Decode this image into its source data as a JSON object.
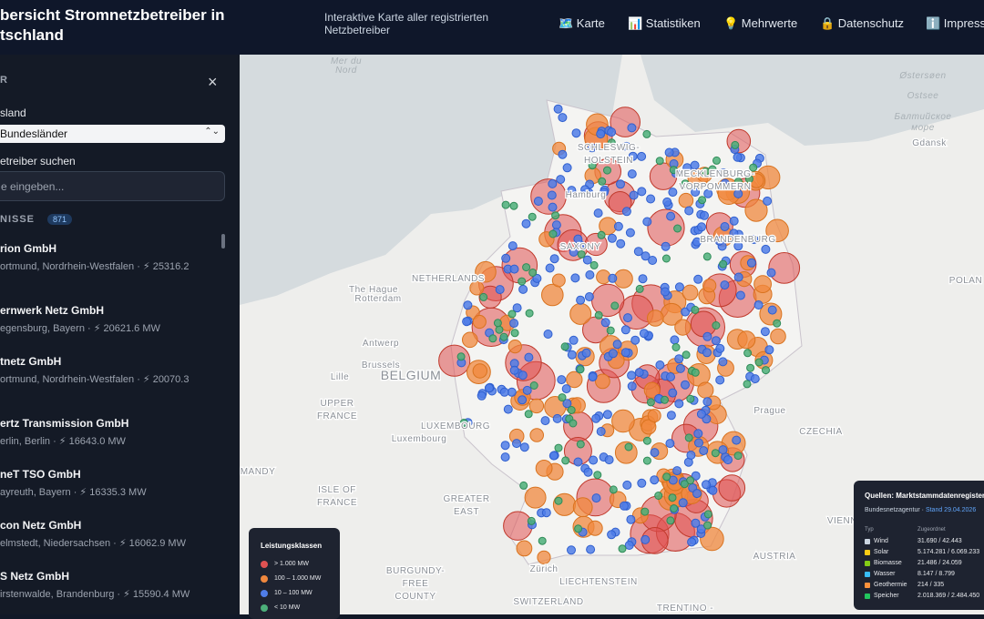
{
  "header": {
    "title_lines": [
      "bersicht Stromnetzbetreiber in",
      "tschland"
    ],
    "subtitle_lines": [
      "Interaktive Karte aller registrierten",
      "Netzbetreiber"
    ],
    "nav": [
      "🗺️ Karte",
      "📊 Statistiken",
      "💡 Mehrwerte",
      "🔒 Datenschutz",
      "ℹ️ Impress"
    ]
  },
  "sidebar": {
    "heading": "R",
    "close": "×",
    "state_label": "sland",
    "state_select": "Bundesländer",
    "search_label": "etreiber suchen",
    "search_placeholder": "e eingeben...",
    "results_label": "NISSE",
    "results_count": "871",
    "items": [
      {
        "name": "rion GmbH",
        "detail": "ortmund, Nordrhein-Westfalen · ⚡ 25316.2"
      },
      {
        "name": "ernwerk Netz GmbH",
        "detail": "egensburg, Bayern · ⚡ 20621.6 MW"
      },
      {
        "name": "tnetz GmbH",
        "detail": "ortmund, Nordrhein-Westfalen · ⚡ 20070.3"
      },
      {
        "name": "ertz Transmission GmbH",
        "detail": "erlin, Berlin · ⚡ 16643.0 MW"
      },
      {
        "name": "neT TSO GmbH",
        "detail": "ayreuth, Bayern · ⚡ 16335.3 MW"
      },
      {
        "name": "con Netz GmbH",
        "detail": "elmstedt, Niedersachsen · ⚡ 16062.9 MW"
      },
      {
        "name": "S Netz GmbH",
        "detail": "irstenwalde, Brandenburg · ⚡ 15590.4 MW"
      }
    ]
  },
  "map": {
    "labels": [
      "Mer du",
      "Nord",
      "Østersøen",
      "Ostsee",
      "Балтийское",
      "море",
      "Gdansk",
      "SCHLESWIG-",
      "HOLSTEIN",
      "MECKLENBURG-",
      "VORPOMMERN",
      "Hamburg",
      "BRANDENBURG",
      "SAXONY",
      "NETHERLANDS",
      "The Hague",
      "Rotterdam",
      "Antwerp",
      "Brussels",
      "BELGIUM",
      "Lille",
      "UPPER",
      "FRANCE",
      "LUXEMBOURG",
      "Luxembourg",
      "MANDY",
      "ISLE OF",
      "FRANCE",
      "GREATER",
      "EAST",
      "BURGUNDY-",
      "FREE",
      "COUNTY",
      "SWITZERLAND",
      "LIECHTENSTEIN",
      "Zürich",
      "AUSTRIA",
      "VIENNA",
      "CZECHIA",
      "Prague",
      "POLAN",
      "TRENTINO -"
    ]
  },
  "legend": {
    "title": "Leistungsklassen",
    "items": [
      "> 1.000 MW",
      "100 – 1.000 MW",
      "10 – 100 MW",
      "< 10 MW"
    ]
  },
  "sources": {
    "title": "Quellen: Marktstammdatenregister (",
    "agency": "Bundesnetzagentur · ",
    "date": "Stand 29.04.2026",
    "columns": [
      "Typ",
      "Zugeordnet"
    ],
    "rows": [
      [
        "Wind",
        "31.690 / 42.443"
      ],
      [
        "Solar",
        "5.174.281 / 6.069.233"
      ],
      [
        "Biomasse",
        "21.486 / 24.059"
      ],
      [
        "Wasser",
        "8.147 / 8.799"
      ],
      [
        "Geothermie",
        "214 / 335"
      ],
      [
        "Speicher",
        "2.018.369 / 2.484.450"
      ]
    ]
  }
}
